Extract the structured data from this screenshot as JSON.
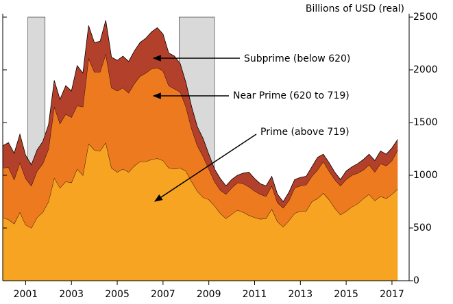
{
  "chart_data": {
    "type": "stacked-area",
    "y_label": "Billions of USD (real)",
    "x": [
      2000,
      2000.25,
      2000.5,
      2000.75,
      2001,
      2001.25,
      2001.5,
      2001.75,
      2002,
      2002.25,
      2002.5,
      2002.75,
      2003,
      2003.25,
      2003.5,
      2003.75,
      2004,
      2004.25,
      2004.5,
      2004.75,
      2005,
      2005.25,
      2005.5,
      2005.75,
      2006,
      2006.25,
      2006.5,
      2006.75,
      2007,
      2007.25,
      2007.5,
      2007.75,
      2008,
      2008.25,
      2008.5,
      2008.75,
      2009,
      2009.25,
      2009.5,
      2009.75,
      2010,
      2010.25,
      2010.5,
      2010.75,
      2011,
      2011.25,
      2011.5,
      2011.75,
      2012,
      2012.25,
      2012.5,
      2012.75,
      2013,
      2013.25,
      2013.5,
      2013.75,
      2014,
      2014.25,
      2014.5,
      2014.75,
      2015,
      2015.25,
      2015.5,
      2015.75,
      2016,
      2016.25,
      2016.5,
      2016.75,
      2017,
      2017.25
    ],
    "series": [
      {
        "name": "Prime (above 719)",
        "color": "#f6a421",
        "values": [
          600,
          580,
          540,
          650,
          530,
          500,
          600,
          650,
          750,
          975,
          880,
          940,
          930,
          1060,
          1000,
          1300,
          1240,
          1230,
          1310,
          1070,
          1030,
          1060,
          1030,
          1090,
          1130,
          1130,
          1150,
          1160,
          1140,
          1070,
          1060,
          1070,
          1040,
          940,
          850,
          790,
          770,
          710,
          640,
          590,
          630,
          670,
          650,
          620,
          600,
          585,
          590,
          680,
          560,
          510,
          570,
          640,
          660,
          660,
          750,
          780,
          830,
          770,
          690,
          625,
          660,
          700,
          730,
          780,
          820,
          760,
          800,
          780,
          820,
          870
        ]
      },
      {
        "name": "Near Prime (620 to 719)",
        "color": "#ee7a1f",
        "values": [
          470,
          495,
          420,
          470,
          440,
          400,
          440,
          460,
          500,
          675,
          610,
          640,
          620,
          600,
          650,
          810,
          740,
          750,
          840,
          760,
          770,
          770,
          750,
          780,
          810,
          840,
          860,
          860,
          850,
          780,
          760,
          720,
          610,
          500,
          430,
          390,
          290,
          230,
          220,
          230,
          250,
          260,
          270,
          270,
          250,
          235,
          210,
          220,
          180,
          180,
          190,
          240,
          240,
          250,
          240,
          270,
          300,
          270,
          270,
          275,
          300,
          300,
          290,
          270,
          280,
          270,
          310,
          310,
          320,
          370
        ]
      },
      {
        "name": "Subprime (below 620)",
        "color": "#b3402b",
        "values": [
          210,
          235,
          250,
          270,
          220,
          200,
          200,
          210,
          230,
          250,
          230,
          270,
          250,
          380,
          320,
          310,
          280,
          290,
          320,
          290,
          290,
          300,
          300,
          310,
          320,
          330,
          350,
          380,
          350,
          310,
          310,
          270,
          230,
          210,
          180,
          170,
          140,
          120,
          110,
          80,
          80,
          70,
          100,
          140,
          120,
          100,
          100,
          90,
          80,
          60,
          80,
          80,
          80,
          80,
          90,
          120,
          70,
          80,
          70,
          60,
          80,
          80,
          90,
          100,
          100,
          110,
          120,
          110,
          120,
          100
        ]
      }
    ],
    "recessions": [
      [
        2001.1,
        2001.85
      ],
      [
        2007.7,
        2009.25
      ]
    ],
    "recession_color": "#d9d9d9",
    "xlim": [
      2000,
      2017.75
    ],
    "xticks": [
      2001,
      2003,
      2005,
      2007,
      2009,
      2011,
      2013,
      2015,
      2017
    ],
    "ylim": [
      0,
      2500
    ],
    "yticks": [
      0,
      500,
      1000,
      1500,
      2000,
      2500
    ]
  }
}
